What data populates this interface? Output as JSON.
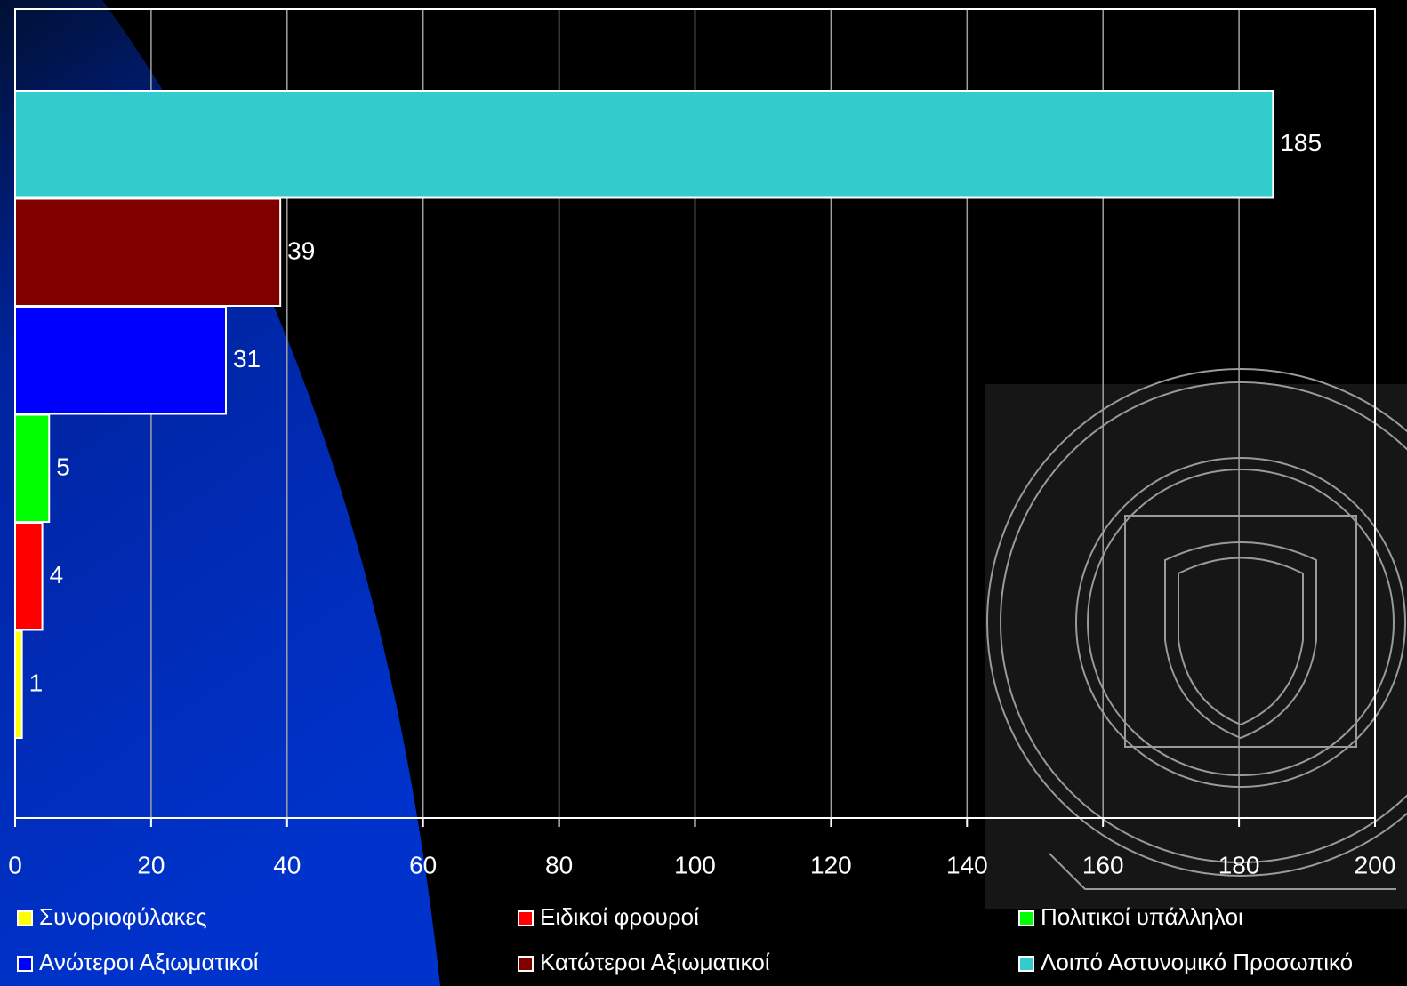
{
  "chart_data": {
    "type": "bar",
    "orientation": "horizontal",
    "series": [
      {
        "name": "Συνοριοφύλακες",
        "color": "#ffff00",
        "values": [
          1
        ]
      },
      {
        "name": "Ειδικοί φρουροί",
        "color": "#ff0000",
        "values": [
          4
        ]
      },
      {
        "name": "Πολιτικοί υπάλληλοι",
        "color": "#00ff00",
        "values": [
          5
        ]
      },
      {
        "name": "Ανώτεροι Αξιωματικοί",
        "color": "#0000ff",
        "values": [
          31
        ]
      },
      {
        "name": "Κατώτεροι Αξιωματικοί",
        "color": "#800000",
        "values": [
          39
        ]
      },
      {
        "name": "Λοιπό Αστυνομικό Προσωπικό",
        "color": "#33cccc",
        "values": [
          185
        ]
      }
    ],
    "xlim": [
      0,
      200
    ],
    "xticks": [
      0,
      20,
      40,
      60,
      80,
      100,
      120,
      140,
      160,
      180,
      200
    ],
    "grid": true,
    "legend": "bottom"
  }
}
